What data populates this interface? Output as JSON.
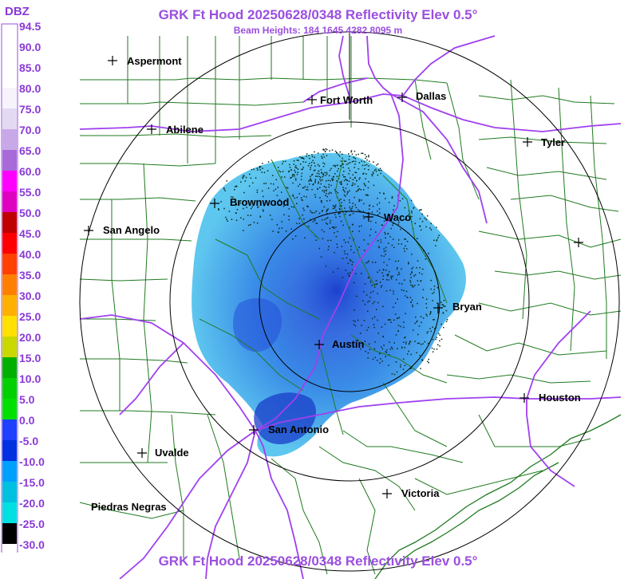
{
  "header": {
    "title": "GRK Ft Hood 20250628/0348 Reflectivity Elev 0.5°",
    "subtitle": "Beam Heights: 184 1645 4282 8095 m"
  },
  "footer": {
    "title": "GRK Ft Hood 20250628/0348 Reflectivity Elev 0.5°"
  },
  "legend": {
    "unit": "DBZ",
    "labels": [
      "94.5",
      "90.0",
      "85.0",
      "80.0",
      "75.0",
      "70.0",
      "65.0",
      "60.0",
      "55.0",
      "50.0",
      "45.0",
      "40.0",
      "35.0",
      "30.0",
      "25.0",
      "20.0",
      "15.0",
      "10.0",
      "5.0",
      "0.0",
      "-5.0",
      "-10.0",
      "-15.0",
      "-20.0",
      "-25.0",
      "-30.0"
    ],
    "colors": [
      "#ffffff",
      "#ffffff",
      "#ffffff",
      "#f6f3fb",
      "#e4d9f2",
      "#c8a8e6",
      "#a86ad8",
      "#ff00ff",
      "#e000c0",
      "#c00000",
      "#ff0000",
      "#ff4000",
      "#ff8000",
      "#ffb000",
      "#ffe000",
      "#c8d800",
      "#00b000",
      "#00d000",
      "#00e000",
      "#2040ff",
      "#0030e0",
      "#00a0ff",
      "#00c0e0",
      "#00e0e0",
      "#000000",
      "#ffffff"
    ]
  },
  "map": {
    "colors": {
      "county_lines": "#1f7a1f",
      "highways": "#a040f0",
      "range_rings": "#000000",
      "echo_low": "#33b8e8",
      "echo_mid": "#2a6ee0",
      "echo_high": "#1538c8"
    },
    "radar_site": "GRK",
    "cities": [
      {
        "name": "Aspermont"
      },
      {
        "name": "Fort Worth"
      },
      {
        "name": "Dallas"
      },
      {
        "name": "Abilene"
      },
      {
        "name": "Tyler"
      },
      {
        "name": "Brownwood"
      },
      {
        "name": "Waco"
      },
      {
        "name": "San Angelo"
      },
      {
        "name": "Bryan"
      },
      {
        "name": "Austin"
      },
      {
        "name": "Houston"
      },
      {
        "name": "San Antonio"
      },
      {
        "name": "Uvalde"
      },
      {
        "name": "Victoria"
      },
      {
        "name": "Piedras Negras"
      },
      {
        "name": ""
      }
    ]
  }
}
